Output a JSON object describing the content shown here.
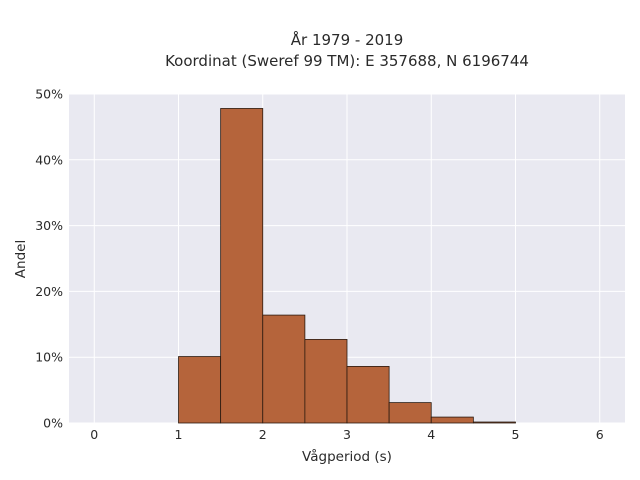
{
  "chart_data": {
    "type": "bar",
    "title_line1": "År 1979 - 2019",
    "title_line2": "Koordinat (Sweref 99 TM): E 357688, N 6196744",
    "xlabel": "Vågperiod (s)",
    "ylabel": "Andel",
    "xlim": [
      -0.3,
      6.3
    ],
    "ylim": [
      0,
      50
    ],
    "x_ticks": [
      0,
      1,
      2,
      3,
      4,
      5,
      6
    ],
    "x_tick_labels": [
      "0",
      "1",
      "2",
      "3",
      "4",
      "5",
      "6"
    ],
    "y_ticks": [
      0,
      10,
      20,
      30,
      40,
      50
    ],
    "y_tick_labels": [
      "0%",
      "10%",
      "20%",
      "30%",
      "40%",
      "50%"
    ],
    "bin_edges": [
      1.0,
      1.5,
      2.0,
      2.5,
      3.0,
      3.5,
      4.0,
      4.5,
      5.0
    ],
    "values": [
      10.1,
      47.8,
      16.4,
      12.7,
      8.6,
      3.1,
      0.9,
      0.15
    ],
    "bar_color": "#b5643b",
    "bar_edge_color": "#2b1a10",
    "plot_background": "#e9e9f1",
    "grid": true,
    "grid_color": "#ffffff"
  }
}
